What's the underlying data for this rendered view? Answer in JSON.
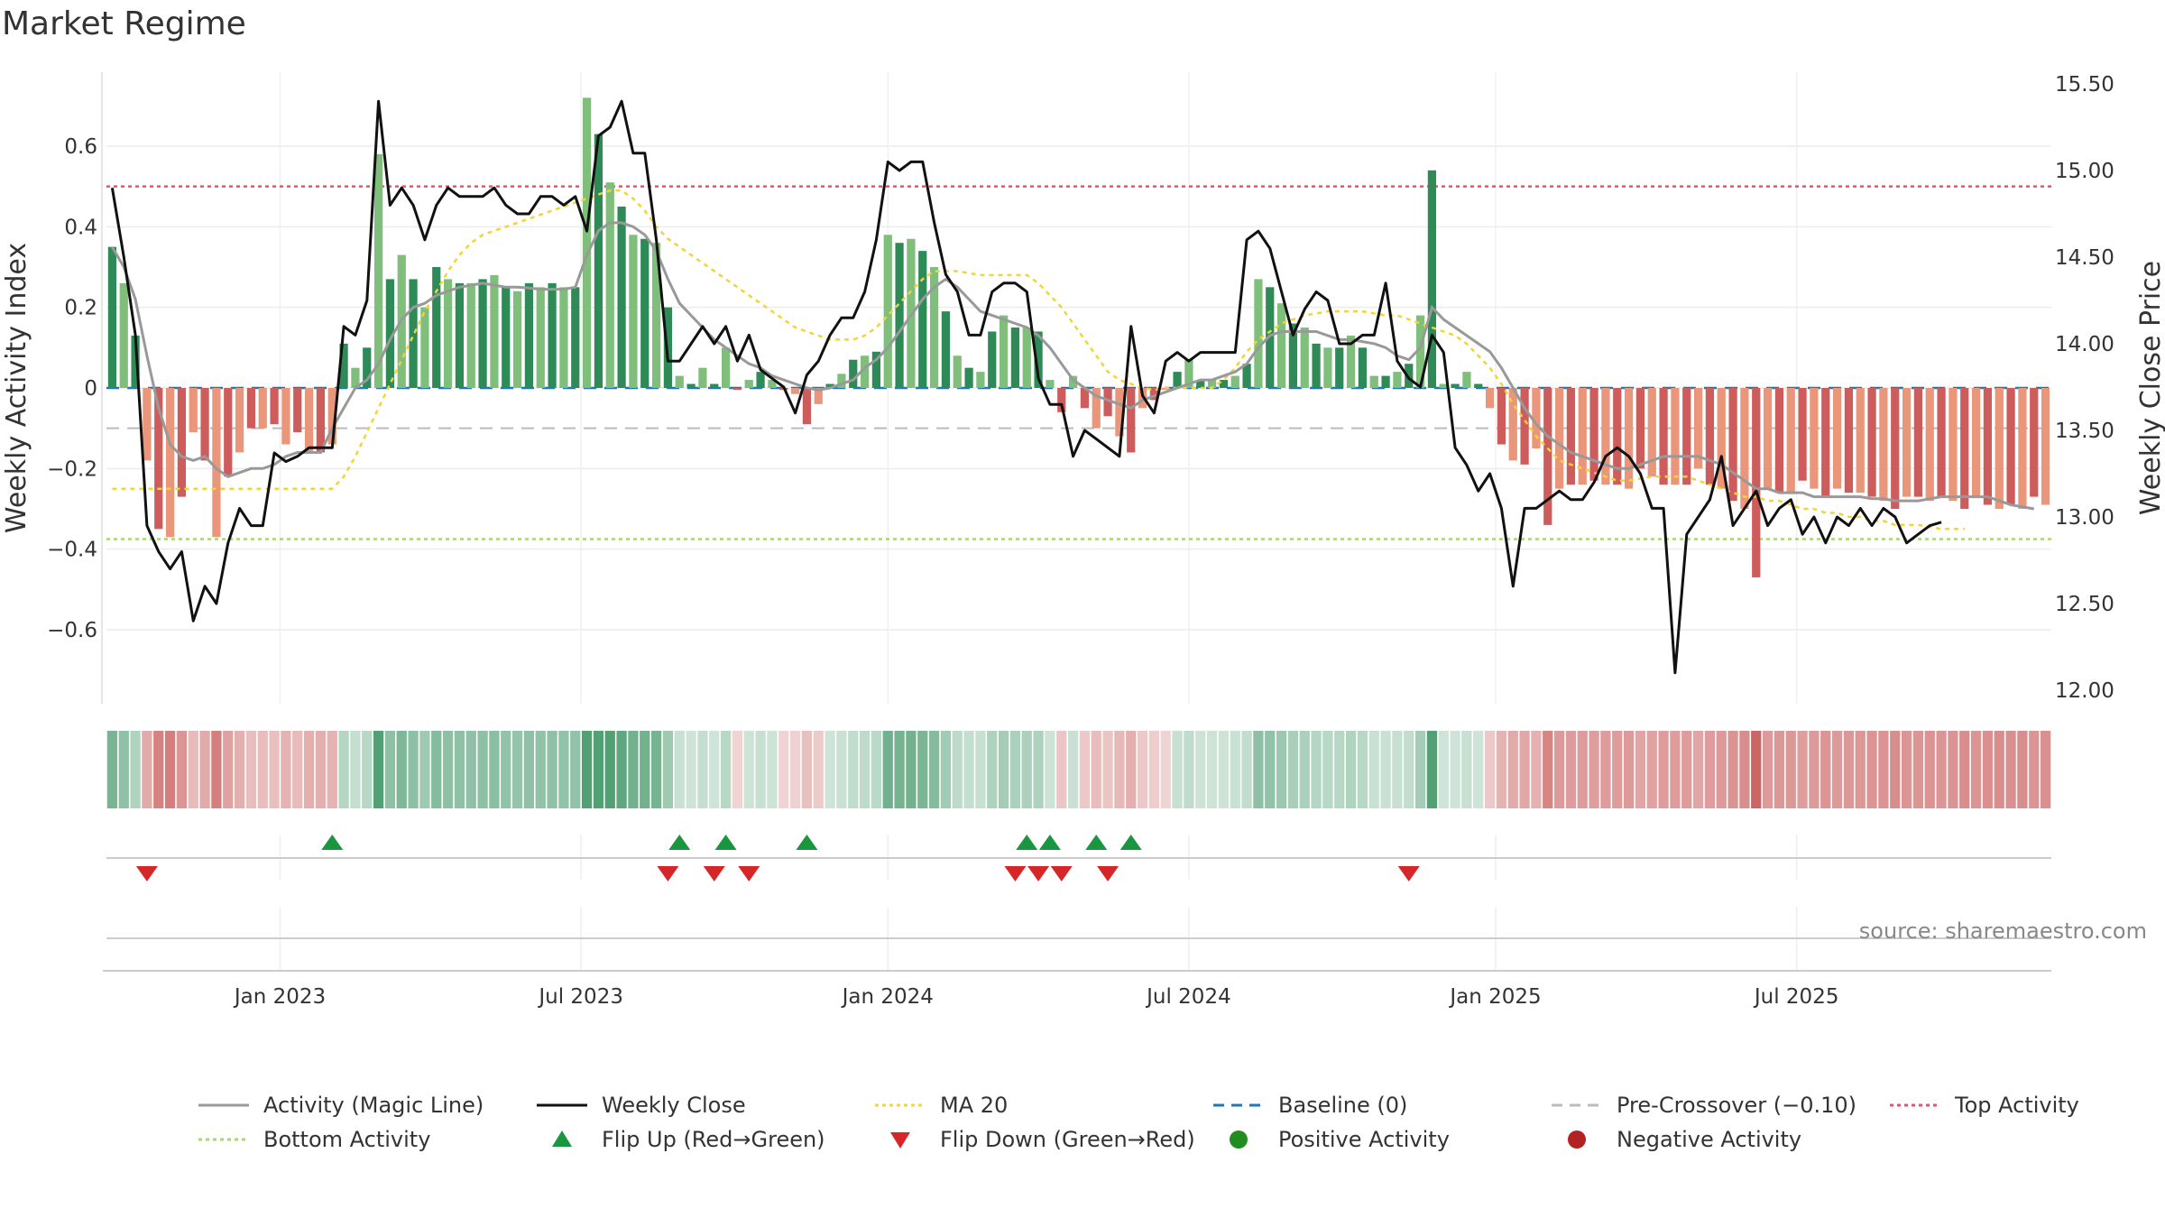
{
  "chart_data": {
    "type": "bar",
    "title": "Market Regime",
    "ylabel_left": "Weekly Activity Index",
    "ylabel_right": "Weekly Close Price",
    "source": "source: sharemaestro.com",
    "y_left_ticks": [
      "0.6",
      "0.4",
      "0.2",
      "0",
      "−0.2",
      "−0.4",
      "−0.6"
    ],
    "y_left_values": [
      0.6,
      0.4,
      0.2,
      0,
      -0.2,
      -0.4,
      -0.6
    ],
    "y_right_ticks": [
      "15.50",
      "15.00",
      "14.50",
      "14.00",
      "13.50",
      "13.00",
      "12.50",
      "12.00"
    ],
    "y_right_values": [
      15.5,
      15.0,
      14.5,
      14.0,
      13.5,
      13.0,
      12.5,
      12.0
    ],
    "x_ticks": [
      "Jan 2023",
      "Jul 2023",
      "Jan 2024",
      "Jul 2024",
      "Jan 2025",
      "Jul 2025"
    ],
    "x_tick_weeks": [
      15,
      41,
      67.5,
      93.5,
      120,
      146
    ],
    "ylim_left": [
      -0.78,
      0.78
    ],
    "ylim_right": [
      12.0,
      15.5
    ],
    "grid": true,
    "legend_position": "bottom",
    "colors": {
      "pos_strong": "#2e8b57",
      "pos_weak": "#7fbf7b",
      "neg_strong": "#cd5c5c",
      "neg_weak": "#e9967a",
      "magic_line": "#999999",
      "close": "#111111",
      "ma20": "#f2d43a",
      "baseline": "#1f77b4",
      "pre_crossover": "#bbbbbb",
      "top": "#e0556f",
      "bottom": "#a6d96a",
      "flip_up": "#1a9641",
      "flip_down": "#d62728",
      "positive_dot": "#228b22",
      "negative_dot": "#b22222"
    },
    "reference_lines": {
      "baseline": 0,
      "pre_crossover": -0.1,
      "top_activity": 0.5,
      "bottom_activity": -0.375
    },
    "activity": [
      0.35,
      0.26,
      0.13,
      -0.18,
      -0.35,
      -0.37,
      -0.27,
      -0.11,
      -0.18,
      -0.37,
      -0.22,
      -0.16,
      -0.1,
      -0.1,
      -0.09,
      -0.14,
      -0.11,
      -0.16,
      -0.16,
      -0.14,
      0.11,
      0.05,
      0.1,
      0.58,
      0.27,
      0.33,
      0.27,
      0.2,
      0.3,
      0.27,
      0.26,
      0.26,
      0.27,
      0.28,
      0.25,
      0.24,
      0.26,
      0.25,
      0.26,
      0.25,
      0.25,
      0.72,
      0.63,
      0.51,
      0.45,
      0.38,
      0.37,
      0.36,
      0.2,
      0.03,
      0.01,
      0.05,
      0.01,
      0.1,
      -0.005,
      0.02,
      0.04,
      0.02,
      -0.005,
      -0.015,
      -0.09,
      -0.04,
      0.01,
      0.035,
      0.07,
      0.08,
      0.09,
      0.38,
      0.36,
      0.37,
      0.34,
      0.3,
      0.19,
      0.08,
      0.05,
      0.04,
      0.14,
      0.18,
      0.15,
      0.15,
      0.14,
      0.02,
      -0.06,
      0.03,
      -0.05,
      -0.1,
      -0.07,
      -0.12,
      -0.16,
      -0.05,
      -0.03,
      -0.005,
      0.04,
      0.07,
      0.02,
      0.02,
      0.02,
      0.03,
      0.06,
      0.27,
      0.25,
      0.21,
      0.16,
      0.15,
      0.11,
      0.1,
      0.1,
      0.13,
      0.1,
      0.03,
      0.03,
      0.04,
      0.06,
      0.18,
      0.54,
      0.01,
      0.01,
      0.04,
      0.01,
      -0.05,
      -0.14,
      -0.18,
      -0.19,
      -0.15,
      -0.34,
      -0.25,
      -0.24,
      -0.24,
      -0.23,
      -0.24,
      -0.24,
      -0.25,
      -0.2,
      -0.22,
      -0.24,
      -0.24,
      -0.24,
      -0.2,
      -0.24,
      -0.25,
      -0.28,
      -0.3,
      -0.47,
      -0.25,
      -0.26,
      -0.26,
      -0.23,
      -0.25,
      -0.27,
      -0.25,
      -0.26,
      -0.26,
      -0.27,
      -0.28,
      -0.3,
      -0.27,
      -0.27,
      -0.28,
      -0.27,
      -0.28,
      -0.3,
      -0.27,
      -0.29,
      -0.3,
      -0.29,
      -0.3,
      -0.27,
      -0.29
    ],
    "magic_line": [
      0.35,
      0.3,
      0.22,
      0.08,
      -0.05,
      -0.14,
      -0.17,
      -0.18,
      -0.17,
      -0.2,
      -0.22,
      -0.21,
      -0.2,
      -0.2,
      -0.19,
      -0.17,
      -0.16,
      -0.16,
      -0.16,
      -0.1,
      -0.05,
      0,
      0.02,
      0.06,
      0.12,
      0.17,
      0.2,
      0.21,
      0.23,
      0.24,
      0.25,
      0.255,
      0.26,
      0.255,
      0.25,
      0.25,
      0.248,
      0.245,
      0.245,
      0.245,
      0.25,
      0.33,
      0.39,
      0.41,
      0.41,
      0.4,
      0.38,
      0.34,
      0.27,
      0.21,
      0.18,
      0.15,
      0.12,
      0.1,
      0.08,
      0.06,
      0.05,
      0.03,
      0.02,
      0.01,
      0,
      -0.005,
      0,
      0.01,
      0.02,
      0.05,
      0.07,
      0.1,
      0.14,
      0.18,
      0.22,
      0.25,
      0.27,
      0.25,
      0.22,
      0.19,
      0.18,
      0.17,
      0.16,
      0.15,
      0.13,
      0.1,
      0.06,
      0.02,
      0,
      -0.02,
      -0.03,
      -0.04,
      -0.05,
      -0.03,
      -0.02,
      -0.01,
      0,
      0.01,
      0.02,
      0.02,
      0.03,
      0.04,
      0.06,
      0.1,
      0.13,
      0.14,
      0.14,
      0.14,
      0.14,
      0.13,
      0.12,
      0.12,
      0.115,
      0.11,
      0.1,
      0.08,
      0.07,
      0.1,
      0.2,
      0.17,
      0.15,
      0.13,
      0.11,
      0.09,
      0.05,
      0,
      -0.05,
      -0.09,
      -0.12,
      -0.14,
      -0.16,
      -0.17,
      -0.18,
      -0.19,
      -0.2,
      -0.2,
      -0.19,
      -0.18,
      -0.17,
      -0.17,
      -0.17,
      -0.17,
      -0.18,
      -0.19,
      -0.21,
      -0.23,
      -0.25,
      -0.25,
      -0.26,
      -0.26,
      -0.26,
      -0.27,
      -0.27,
      -0.27,
      -0.27,
      -0.27,
      -0.275,
      -0.275,
      -0.28,
      -0.28,
      -0.28,
      -0.275,
      -0.27,
      -0.27,
      -0.27,
      -0.27,
      -0.27,
      -0.28,
      -0.29,
      -0.295,
      -0.3
    ],
    "weekly_close": [
      14.9,
      14.5,
      14.05,
      12.95,
      12.8,
      12.7,
      12.8,
      12.4,
      12.6,
      12.5,
      12.85,
      13.05,
      12.95,
      12.95,
      13.37,
      13.32,
      13.35,
      13.4,
      13.4,
      13.4,
      14.1,
      14.05,
      14.25,
      15.4,
      14.8,
      14.9,
      14.8,
      14.6,
      14.8,
      14.9,
      14.85,
      14.85,
      14.85,
      14.9,
      14.8,
      14.75,
      14.75,
      14.85,
      14.85,
      14.8,
      14.85,
      14.65,
      15.2,
      15.25,
      15.4,
      15.1,
      15.1,
      14.6,
      13.9,
      13.9,
      14.0,
      14.1,
      14.0,
      14.1,
      13.9,
      14.05,
      13.85,
      13.8,
      13.75,
      13.6,
      13.82,
      13.9,
      14.05,
      14.15,
      14.15,
      14.3,
      14.6,
      15.05,
      15.0,
      15.05,
      15.05,
      14.7,
      14.4,
      14.3,
      14.05,
      14.05,
      14.3,
      14.35,
      14.35,
      14.3,
      13.8,
      13.65,
      13.65,
      13.35,
      13.5,
      13.45,
      13.4,
      13.35,
      14.1,
      13.7,
      13.6,
      13.9,
      13.95,
      13.9,
      13.95,
      13.95,
      13.95,
      13.95,
      14.6,
      14.65,
      14.55,
      14.3,
      14.05,
      14.2,
      14.3,
      14.25,
      14.0,
      14.0,
      14.05,
      14.05,
      14.35,
      13.9,
      13.8,
      13.75,
      14.05,
      13.95,
      13.4,
      13.3,
      13.15,
      13.25,
      13.05,
      12.6,
      13.05,
      13.05,
      13.1,
      13.15,
      13.1,
      13.1,
      13.2,
      13.35,
      13.4,
      13.35,
      13.25,
      13.05,
      13.05,
      12.1,
      12.9,
      13.0,
      13.1,
      13.35,
      12.95,
      13.05,
      13.15,
      12.95,
      13.05,
      13.1,
      12.9,
      13.0,
      12.85,
      13.0,
      12.95,
      13.05,
      12.95,
      13.05,
      13.0,
      12.85,
      12.9,
      12.95,
      12.97
    ],
    "ma20": [
      -0.25,
      -0.25,
      -0.25,
      -0.25,
      -0.25,
      -0.25,
      -0.25,
      -0.25,
      -0.25,
      -0.25,
      -0.25,
      -0.25,
      -0.25,
      -0.25,
      -0.25,
      -0.25,
      -0.25,
      -0.25,
      -0.25,
      -0.25,
      -0.22,
      -0.17,
      -0.11,
      -0.05,
      0.01,
      0.07,
      0.13,
      0.19,
      0.24,
      0.29,
      0.33,
      0.36,
      0.38,
      0.39,
      0.4,
      0.41,
      0.42,
      0.43,
      0.44,
      0.45,
      0.46,
      0.47,
      0.48,
      0.49,
      0.49,
      0.47,
      0.44,
      0.4,
      0.37,
      0.35,
      0.33,
      0.31,
      0.29,
      0.27,
      0.25,
      0.23,
      0.21,
      0.19,
      0.17,
      0.15,
      0.14,
      0.13,
      0.12,
      0.12,
      0.12,
      0.13,
      0.15,
      0.18,
      0.21,
      0.24,
      0.27,
      0.29,
      0.29,
      0.29,
      0.285,
      0.28,
      0.28,
      0.28,
      0.28,
      0.28,
      0.26,
      0.23,
      0.2,
      0.16,
      0.12,
      0.08,
      0.04,
      0.02,
      0.01,
      0,
      -0.005,
      0,
      0,
      0,
      0,
      0,
      0.02,
      0.05,
      0.09,
      0.12,
      0.14,
      0.16,
      0.17,
      0.18,
      0.185,
      0.19,
      0.19,
      0.19,
      0.19,
      0.185,
      0.18,
      0.18,
      0.17,
      0.16,
      0.15,
      0.14,
      0.13,
      0.11,
      0.08,
      0.05,
      0.01,
      -0.04,
      -0.08,
      -0.12,
      -0.15,
      -0.18,
      -0.19,
      -0.2,
      -0.21,
      -0.22,
      -0.23,
      -0.23,
      -0.225,
      -0.22,
      -0.22,
      -0.22,
      -0.22,
      -0.23,
      -0.24,
      -0.25,
      -0.26,
      -0.27,
      -0.27,
      -0.28,
      -0.28,
      -0.29,
      -0.3,
      -0.3,
      -0.31,
      -0.31,
      -0.32,
      -0.32,
      -0.33,
      -0.33,
      -0.34,
      -0.34,
      -0.34,
      -0.345,
      -0.35,
      -0.35,
      -0.35
    ],
    "flip_up_weeks": [
      19,
      49,
      53,
      60,
      79,
      81,
      85,
      88
    ],
    "flip_down_weeks": [
      3,
      48,
      52,
      55,
      78,
      80,
      82,
      86,
      112
    ],
    "legend": [
      {
        "label": "Activity (Magic Line)",
        "kind": "line",
        "color": "#999999",
        "dash": "none"
      },
      {
        "label": "Weekly Close",
        "kind": "line",
        "color": "#111111",
        "dash": "none"
      },
      {
        "label": "MA 20",
        "kind": "line",
        "color": "#f2d43a",
        "dash": "4,4"
      },
      {
        "label": "Baseline (0)",
        "kind": "line",
        "color": "#1f77b4",
        "dash": "12,8"
      },
      {
        "label": "Pre-Crossover (−0.10)",
        "kind": "line",
        "color": "#bbbbbb",
        "dash": "12,8"
      },
      {
        "label": "Top Activity",
        "kind": "line",
        "color": "#e0556f",
        "dash": "4,4"
      },
      {
        "label": "Bottom Activity",
        "kind": "line",
        "color": "#a6d96a",
        "dash": "4,4"
      },
      {
        "label": "Flip Up (Red→Green)",
        "kind": "tri-up",
        "color": "#1a9641"
      },
      {
        "label": "Flip Down (Green→Red)",
        "kind": "tri-down",
        "color": "#d62728"
      },
      {
        "label": "Positive Activity",
        "kind": "dot",
        "color": "#228b22"
      },
      {
        "label": "Negative Activity",
        "kind": "dot",
        "color": "#b22222"
      }
    ]
  }
}
